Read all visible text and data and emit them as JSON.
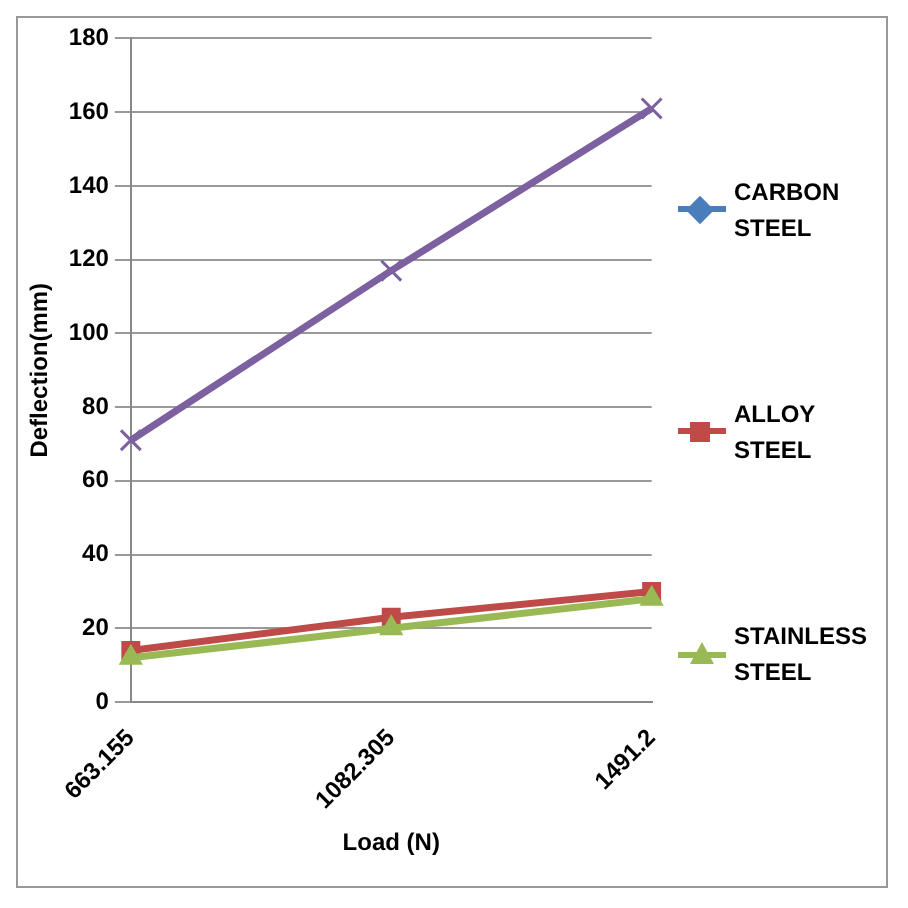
{
  "chart_data": {
    "type": "line",
    "xlabel": "Load (N)",
    "ylabel": "Deflection(mm)",
    "categories": [
      "663.155",
      "1082.305",
      "1491.2"
    ],
    "series": [
      {
        "name": "CARBON STEEL",
        "color": "#4a7ebb",
        "marker": "diamond",
        "values": [
          null,
          null,
          null
        ]
      },
      {
        "name": "ALLOY STEEL",
        "color": "#be4b48",
        "marker": "square",
        "values": [
          14,
          23,
          30
        ]
      },
      {
        "name": "STAINLESS STEEL",
        "color": "#98b954",
        "marker": "triangle",
        "values": [
          12,
          20,
          28
        ]
      },
      {
        "color": "#7d60a0",
        "marker": "cross",
        "values": [
          71,
          117,
          161
        ]
      }
    ],
    "ylim": [
      0,
      180
    ],
    "yticks": [
      0,
      20,
      40,
      60,
      80,
      100,
      120,
      140,
      160,
      180
    ],
    "grid": "y",
    "legend": "right"
  }
}
